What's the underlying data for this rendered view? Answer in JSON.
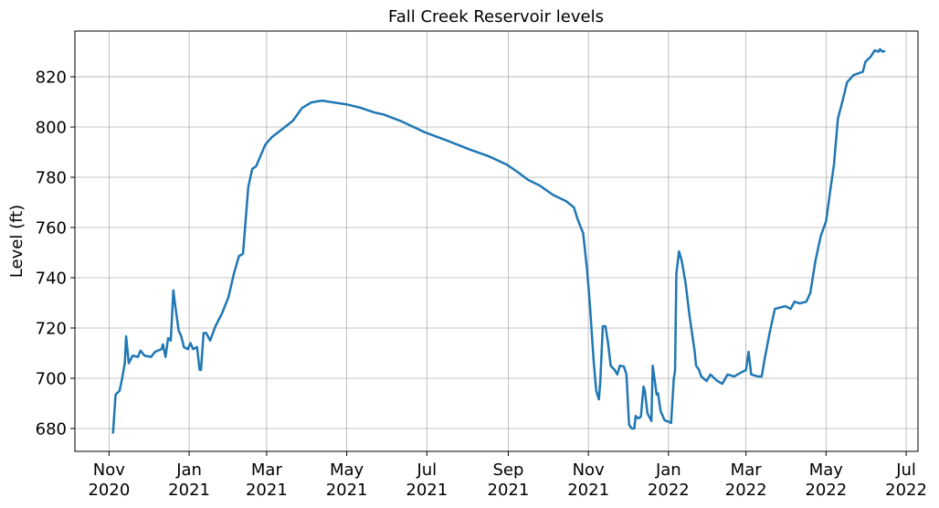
{
  "chart_data": {
    "type": "line",
    "title": "Fall Creek Reservoir levels",
    "y_label": "Level (ft)",
    "color": "#1f77b4",
    "grid": true,
    "x": [
      "2020-11-04",
      "2020-11-06",
      "2020-11-09",
      "2020-11-11",
      "2020-11-13",
      "2020-11-14",
      "2020-11-16",
      "2020-11-17",
      "2020-11-19",
      "2020-11-23",
      "2020-11-25",
      "2020-11-28",
      "2020-12-03",
      "2020-12-06",
      "2020-12-11",
      "2020-12-12",
      "2020-12-14",
      "2020-12-16",
      "2020-12-18",
      "2020-12-20",
      "2020-12-21",
      "2020-12-24",
      "2020-12-26",
      "2020-12-28",
      "2020-12-31",
      "2021-01-02",
      "2021-01-04",
      "2021-01-07",
      "2021-01-09",
      "2021-01-10",
      "2021-01-12",
      "2021-01-14",
      "2021-01-17",
      "2021-01-21",
      "2021-01-26",
      "2021-01-31",
      "2021-02-04",
      "2021-02-08",
      "2021-02-11",
      "2021-02-15",
      "2021-02-18",
      "2021-02-21",
      "2021-02-28",
      "2021-03-05",
      "2021-03-14",
      "2021-03-21",
      "2021-03-28",
      "2021-04-04",
      "2021-04-12",
      "2021-04-21",
      "2021-05-01",
      "2021-05-12",
      "2021-05-22",
      "2021-05-29",
      "2021-06-12",
      "2021-06-30",
      "2021-07-17",
      "2021-08-03",
      "2021-08-17",
      "2021-08-31",
      "2021-09-07",
      "2021-09-16",
      "2021-09-25",
      "2021-10-05",
      "2021-10-15",
      "2021-10-21",
      "2021-10-24",
      "2021-10-28",
      "2021-10-31",
      "2021-11-02",
      "2021-11-05",
      "2021-11-07",
      "2021-11-09",
      "2021-11-10",
      "2021-11-12",
      "2021-11-14",
      "2021-11-16",
      "2021-11-18",
      "2021-11-21",
      "2021-11-23",
      "2021-11-25",
      "2021-11-28",
      "2021-11-30",
      "2021-12-02",
      "2021-12-04",
      "2021-12-06",
      "2021-12-07",
      "2021-12-09",
      "2021-12-11",
      "2021-12-13",
      "2021-12-14",
      "2021-12-16",
      "2021-12-19",
      "2021-12-20",
      "2021-12-23",
      "2021-12-24",
      "2021-12-26",
      "2021-12-29",
      "2022-01-02",
      "2022-01-03",
      "2022-01-05",
      "2022-01-06",
      "2022-01-07",
      "2022-01-09",
      "2022-01-11",
      "2022-01-14",
      "2022-01-17",
      "2022-01-21",
      "2022-01-22",
      "2022-01-24",
      "2022-01-26",
      "2022-01-30",
      "2022-02-02",
      "2022-02-07",
      "2022-02-11",
      "2022-02-15",
      "2022-02-20",
      "2022-02-25",
      "2022-03-01",
      "2022-03-03",
      "2022-03-05",
      "2022-03-10",
      "2022-03-13",
      "2022-03-15",
      "2022-03-19",
      "2022-03-23",
      "2022-03-31",
      "2022-04-04",
      "2022-04-07",
      "2022-04-11",
      "2022-04-16",
      "2022-04-19",
      "2022-04-23",
      "2022-04-27",
      "2022-05-01",
      "2022-05-04",
      "2022-05-07",
      "2022-05-10",
      "2022-05-14",
      "2022-05-17",
      "2022-05-22",
      "2022-05-29",
      "2022-05-31",
      "2022-06-04",
      "2022-06-07",
      "2022-06-10",
      "2022-06-11",
      "2022-06-13",
      "2022-06-15"
    ],
    "values": [
      678,
      693.5,
      695,
      700,
      706,
      716.7,
      706,
      707,
      709,
      708.5,
      711,
      709,
      708.5,
      710.5,
      711.6,
      713.5,
      708.5,
      716,
      715,
      735,
      730.5,
      719,
      716.7,
      712.4,
      711.6,
      714,
      711.6,
      712.4,
      703.3,
      703.3,
      718,
      718,
      715,
      720.7,
      725.8,
      732.4,
      741.5,
      748.7,
      749.5,
      776,
      783.3,
      784.4,
      793,
      796,
      799.6,
      802.5,
      807.6,
      809.8,
      810.5,
      809.8,
      809,
      807.6,
      805.8,
      805,
      802.2,
      797.8,
      794.5,
      791,
      788.4,
      785,
      782.5,
      779,
      776.7,
      773,
      770.5,
      768,
      763,
      757.8,
      743.3,
      730.5,
      707,
      695,
      691.6,
      698,
      720.7,
      720.7,
      714,
      705,
      703.3,
      701.5,
      705,
      704.7,
      701.5,
      681.5,
      680,
      680,
      685,
      684,
      684.7,
      696.7,
      695,
      686,
      683,
      705,
      693.5,
      694,
      687,
      683.3,
      682.5,
      682.2,
      699.6,
      703,
      741.5,
      750.5,
      747,
      738,
      725,
      710.5,
      705,
      703.6,
      700.7,
      698.9,
      701.5,
      699,
      697.8,
      701.5,
      700.7,
      702.2,
      703.3,
      710.5,
      701.5,
      700.7,
      700.7,
      707,
      718,
      727.6,
      728.7,
      727.6,
      730.5,
      729.8,
      730.5,
      734,
      747,
      756.7,
      762.5,
      774,
      785,
      803.3,
      811.3,
      817.8,
      820.7,
      822,
      826,
      828,
      830.5,
      830,
      831,
      830,
      830.3
    ],
    "xlim": [
      "2020-10-06",
      "2022-07-10"
    ],
    "xticks": [
      {
        "value": "2020-11-01",
        "label": "Nov\n2020"
      },
      {
        "value": "2021-01-01",
        "label": "Jan\n2021"
      },
      {
        "value": "2021-03-01",
        "label": "Mar\n2021"
      },
      {
        "value": "2021-05-01",
        "label": "May\n2021"
      },
      {
        "value": "2021-07-01",
        "label": "Jul\n2021"
      },
      {
        "value": "2021-09-01",
        "label": "Sep\n2021"
      },
      {
        "value": "2021-11-01",
        "label": "Nov\n2021"
      },
      {
        "value": "2022-01-01",
        "label": "Jan\n2022"
      },
      {
        "value": "2022-03-01",
        "label": "Mar\n2022"
      },
      {
        "value": "2022-05-01",
        "label": "May\n2022"
      },
      {
        "value": "2022-07-01",
        "label": "Jul\n2022"
      }
    ],
    "ylim": [
      670.9,
      838.2
    ],
    "yticks": [
      680,
      700,
      720,
      740,
      760,
      780,
      800,
      820
    ]
  }
}
